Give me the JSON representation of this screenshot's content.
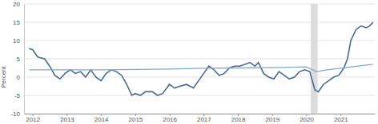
{
  "chart_data": {
    "type": "line",
    "ylabel": "Percent",
    "xlim": [
      2011.75,
      2022.0
    ],
    "xticks": [
      2012,
      2013,
      2014,
      2015,
      2016,
      2017,
      2018,
      2019,
      2020,
      2021
    ],
    "ylim": [
      -10,
      20
    ],
    "yticks": [
      -10,
      -5,
      0,
      5,
      10,
      15,
      20
    ],
    "grid": true,
    "shaded": [
      2020.13,
      2020.33
    ],
    "series": [
      {
        "color": "#4a6a8f",
        "x": [
          2011.9,
          2012.0,
          2012.15,
          2012.35,
          2012.5,
          2012.65,
          2012.8,
          2012.95,
          2013.1,
          2013.25,
          2013.4,
          2013.55,
          2013.7,
          2013.85,
          2014.0,
          2014.15,
          2014.3,
          2014.45,
          2014.6,
          2014.75,
          2014.9,
          2015.0,
          2015.15,
          2015.3,
          2015.5,
          2015.65,
          2015.8,
          2016.0,
          2016.15,
          2016.3,
          2016.5,
          2016.7,
          2016.85,
          2017.0,
          2017.15,
          2017.3,
          2017.45,
          2017.6,
          2017.75,
          2017.9,
          2018.05,
          2018.2,
          2018.35,
          2018.5,
          2018.6,
          2018.75,
          2018.9,
          2019.05,
          2019.2,
          2019.35,
          2019.5,
          2019.65,
          2019.8,
          2019.95,
          2020.1,
          2020.25,
          2020.35,
          2020.5,
          2020.65,
          2020.8,
          2020.95,
          2021.1,
          2021.2,
          2021.3,
          2021.45,
          2021.6,
          2021.75,
          2021.85,
          2021.95
        ],
        "values": [
          7.8,
          7.5,
          5.5,
          5,
          3,
          0.5,
          -0.5,
          1,
          2,
          1,
          1.5,
          0,
          2,
          0,
          -1,
          1,
          2,
          1.5,
          0.5,
          -2,
          -5,
          -4.5,
          -5,
          -4,
          -4,
          -5,
          -4.5,
          -2,
          -3,
          -2.5,
          -2,
          -3,
          -1,
          1,
          3,
          2,
          0.5,
          1,
          2.5,
          3,
          3,
          3.5,
          4,
          3,
          4,
          1,
          0,
          -0.5,
          1.5,
          0.5,
          -0.5,
          0,
          1.5,
          2,
          1.5,
          -3.5,
          -4,
          -2,
          -1,
          0,
          0.5,
          2.5,
          5,
          10,
          13,
          14,
          13.5,
          14,
          15
        ]
      },
      {
        "color": "#7fa7d4",
        "x": [
          2011.9,
          2013.0,
          2014.0,
          2015.0,
          2016.0,
          2017.0,
          2018.0,
          2019.0,
          2020.0,
          2020.3,
          2020.6,
          2021.0,
          2021.5,
          2021.95
        ],
        "values": [
          2,
          2,
          2,
          2.1,
          2.2,
          2.4,
          2.5,
          2.6,
          2.8,
          1.5,
          2,
          2.4,
          3,
          3.5
        ]
      }
    ]
  }
}
